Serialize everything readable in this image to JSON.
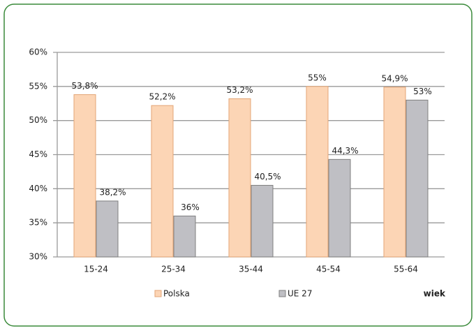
{
  "chart_data": {
    "type": "bar",
    "categories": [
      "15-24",
      "25-34",
      "35-44",
      "45-54",
      "55-64"
    ],
    "series": [
      {
        "name": "Polska",
        "color": "#fcd5b5",
        "values": [
          53.8,
          52.2,
          53.2,
          55,
          54.9
        ],
        "value_labels": [
          "53,8%",
          "52,2%",
          "53,2%",
          "55%",
          "54,9%"
        ]
      },
      {
        "name": "UE 27",
        "color": "#bfbfc4",
        "values": [
          38.2,
          36,
          40.5,
          44.3,
          53
        ],
        "value_labels": [
          "38,2%",
          "36%",
          "40,5%",
          "44,3%",
          "53%"
        ]
      }
    ],
    "x_label": "wiek",
    "ylim": [
      30,
      60
    ],
    "yticks": [
      {
        "value": 30,
        "label": "30%"
      },
      {
        "value": 35,
        "label": "35%"
      },
      {
        "value": 40,
        "label": "40%"
      },
      {
        "value": 45,
        "label": "45%"
      },
      {
        "value": 50,
        "label": "50%"
      },
      {
        "value": 55,
        "label": "55%"
      },
      {
        "value": 60,
        "label": "60%"
      }
    ],
    "grid": true
  }
}
